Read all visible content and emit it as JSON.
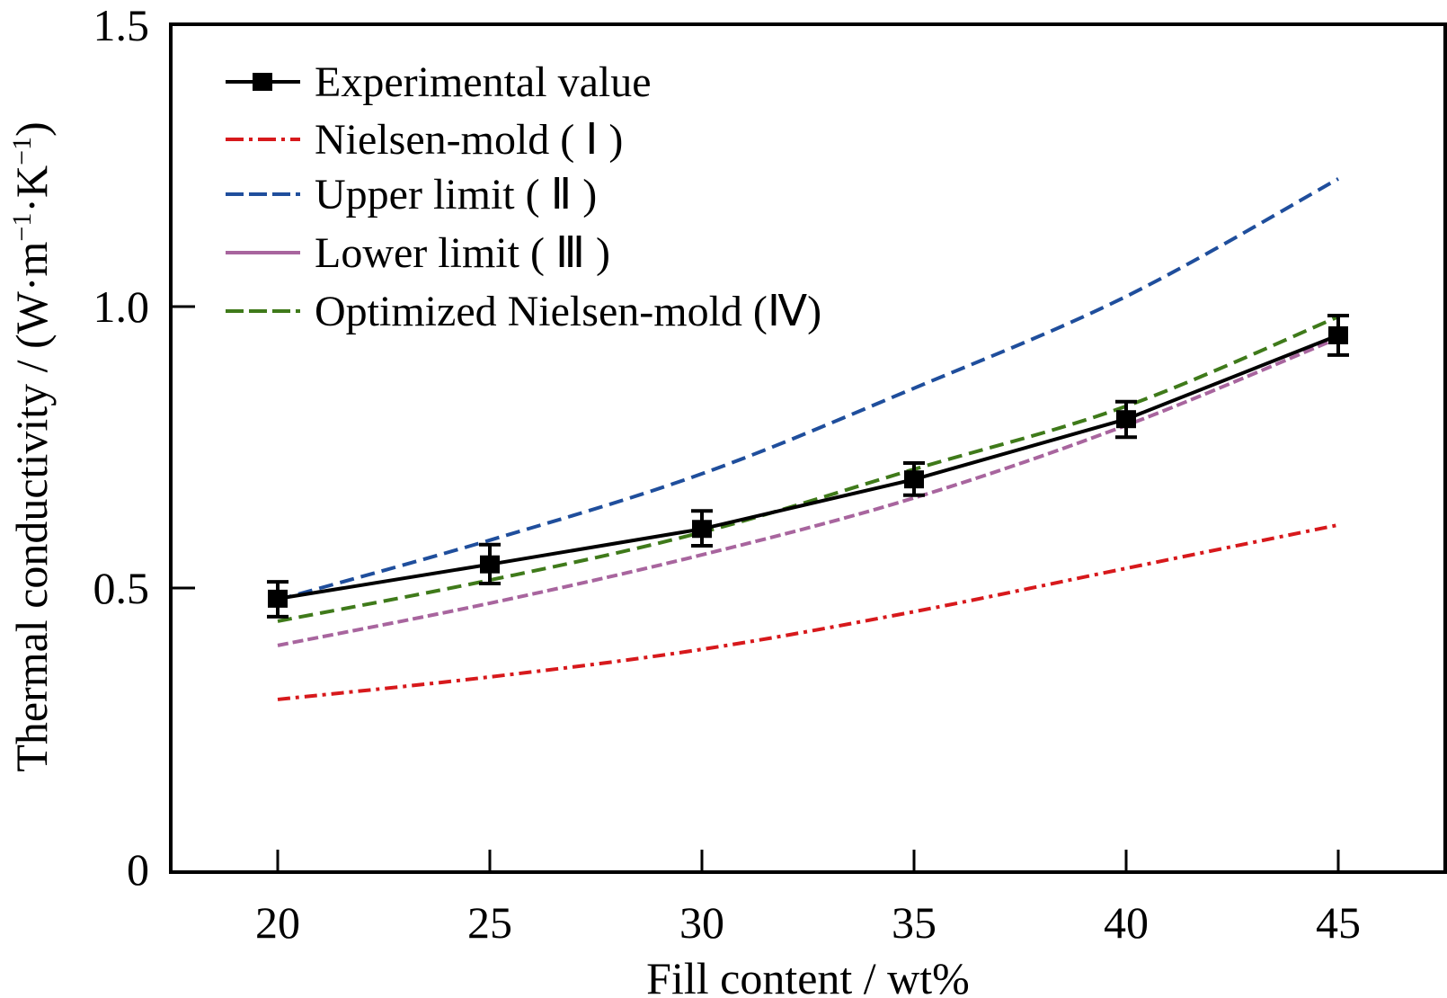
{
  "chart_data": {
    "type": "line",
    "title": "",
    "xlabel": "Fill content / wt%",
    "ylabel": "Thermal conductivity / (W·m⁻¹·K⁻¹)",
    "ylabel_parts": {
      "prefix": "Thermal conductivity / (W·m",
      "sup1": "−1",
      "mid": "·K",
      "sup2": "−1",
      "suffix": ")"
    },
    "xlim": [
      17.5,
      47.5
    ],
    "ylim": [
      0,
      1.5
    ],
    "x": [
      20,
      25,
      30,
      35,
      40,
      45
    ],
    "xticks": [
      "20",
      "25",
      "30",
      "35",
      "40",
      "45"
    ],
    "yticks": [
      {
        "value": 0,
        "label": "0"
      },
      {
        "value": 0.5,
        "label": "0.5"
      },
      {
        "value": 1.0,
        "label": "1.0"
      },
      {
        "value": 1.5,
        "label": "1.5"
      }
    ],
    "grid": false,
    "legend_position": "top-left",
    "series": [
      {
        "name": "Experimental value",
        "color": "#000000",
        "style": "solid-marker",
        "values": [
          0.481,
          0.542,
          0.605,
          0.693,
          0.8,
          0.949
        ],
        "error_low": [
          0.449,
          0.508,
          0.575,
          0.665,
          0.768,
          0.914
        ],
        "error_high": [
          0.511,
          0.577,
          0.637,
          0.722,
          0.831,
          0.984
        ]
      },
      {
        "name": "Nielsen-mold ( Ⅰ )",
        "color": "#d7191c",
        "style": "dashdot",
        "values": [
          0.302,
          0.342,
          0.391,
          0.458,
          0.535,
          0.612
        ]
      },
      {
        "name": "Upper limit ( Ⅱ )",
        "color": "#1f4e9c",
        "style": "dashed",
        "values": [
          0.479,
          0.585,
          0.703,
          0.855,
          1.018,
          1.227
        ]
      },
      {
        "name": "Lower limit ( Ⅲ )",
        "color": "#a8659e",
        "style": "dashed-fine",
        "values": [
          0.398,
          0.473,
          0.559,
          0.66,
          0.789,
          0.944
        ]
      },
      {
        "name": "Optimized Nielsen-mold (Ⅳ)",
        "color": "#3f7a1a",
        "style": "dashed",
        "values": [
          0.441,
          0.514,
          0.599,
          0.711,
          0.823,
          0.982
        ]
      }
    ]
  }
}
